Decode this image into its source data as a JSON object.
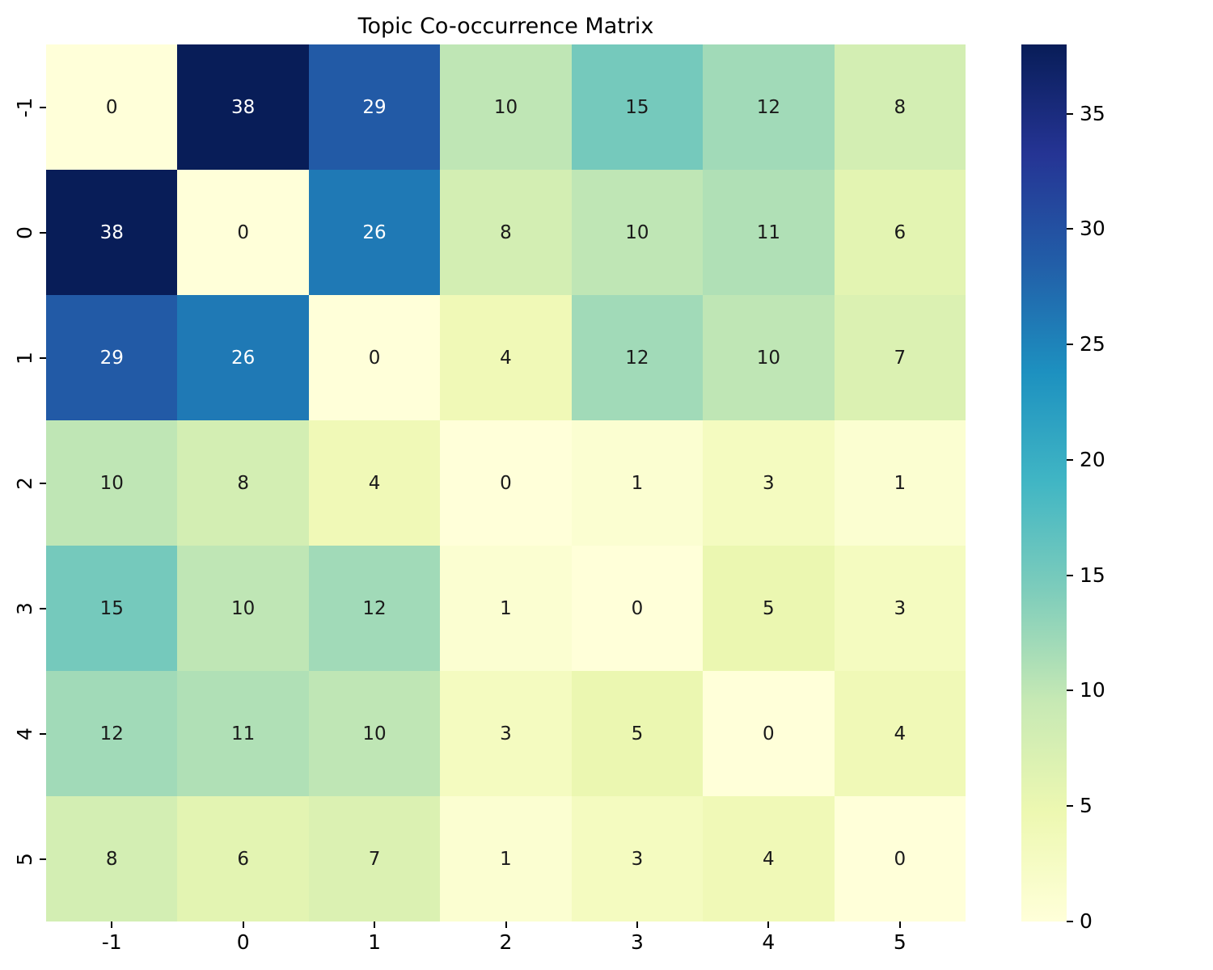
{
  "chart_data": {
    "type": "heatmap",
    "title": "Topic Co-occurrence Matrix",
    "x_tick_labels": [
      "-1",
      "0",
      "1",
      "2",
      "3",
      "4",
      "5"
    ],
    "y_tick_labels": [
      "-1",
      "0",
      "1",
      "2",
      "3",
      "4",
      "5"
    ],
    "matrix": [
      [
        0,
        38,
        29,
        10,
        15,
        12,
        8
      ],
      [
        38,
        0,
        26,
        8,
        10,
        11,
        6
      ],
      [
        29,
        26,
        0,
        4,
        12,
        10,
        7
      ],
      [
        10,
        8,
        4,
        0,
        1,
        3,
        1
      ],
      [
        15,
        10,
        12,
        1,
        0,
        5,
        3
      ],
      [
        12,
        11,
        10,
        3,
        5,
        0,
        4
      ],
      [
        8,
        6,
        7,
        1,
        3,
        4,
        0
      ]
    ],
    "annotated": true,
    "vmin": 0,
    "vmax": 38,
    "colormap": "YlGnBu",
    "colormap_stops": [
      {
        "pos": 0.0,
        "color": "#ffffd9"
      },
      {
        "pos": 0.125,
        "color": "#edf8b1"
      },
      {
        "pos": 0.25,
        "color": "#c7e9b4"
      },
      {
        "pos": 0.375,
        "color": "#7fcdbb"
      },
      {
        "pos": 0.5,
        "color": "#41b6c4"
      },
      {
        "pos": 0.625,
        "color": "#1d91c0"
      },
      {
        "pos": 0.75,
        "color": "#225ea8"
      },
      {
        "pos": 0.875,
        "color": "#253494"
      },
      {
        "pos": 1.0,
        "color": "#081d58"
      }
    ],
    "colorbar_ticks": [
      0,
      5,
      10,
      15,
      20,
      25,
      30,
      35
    ],
    "legend_position": "colorbar-right",
    "grid": false
  },
  "colors": {
    "background": "#ffffff",
    "title_text": "#000000",
    "tick_text": "#000000",
    "tick_mark": "#000000",
    "annot_text_dark": "#1a1a1a",
    "annot_text_light": "#ffffff"
  }
}
